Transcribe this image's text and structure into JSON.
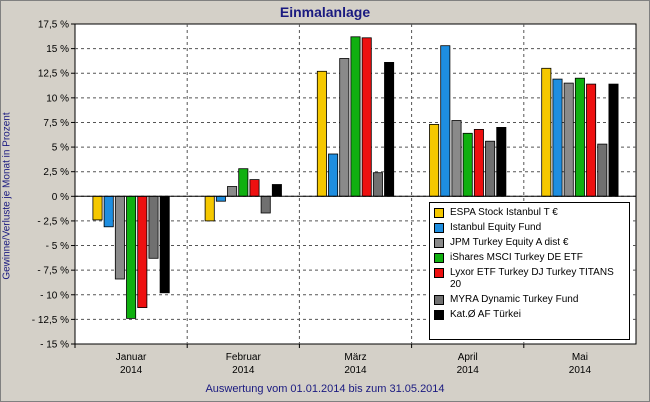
{
  "title": "Einmalanlage",
  "footer": "Auswertung vom 01.01.2014 bis zum 31.05.2014",
  "chart_data": {
    "type": "bar",
    "title": "Einmalanlage",
    "xlabel": "",
    "ylabel": "Gewinne/Verluste je Monat in Prozent",
    "ylim": [
      -15,
      17.5
    ],
    "grid": true,
    "legend_position": "bottom-right",
    "categories": [
      "Januar",
      "Februar",
      "März",
      "April",
      "Mai"
    ],
    "category_years": [
      "2014",
      "2014",
      "2014",
      "2014",
      "2014"
    ],
    "y_ticks": [
      "17,5 %",
      "15 %",
      "12,5 %",
      "10 %",
      "7,5 %",
      "5 %",
      "2,5 %",
      "0 %",
      "- 2,5 %",
      "- 5 %",
      "- 7,5 %",
      "- 10 %",
      "- 12,5 %",
      "- 15 %"
    ],
    "series": [
      {
        "name": "ESPA Stock Istanbul T €",
        "color": "#f5c800",
        "values": [
          -2.4,
          -2.5,
          12.7,
          7.3,
          13.0
        ]
      },
      {
        "name": "Istanbul Equity Fund",
        "color": "#1e8ee0",
        "values": [
          -3.1,
          -0.5,
          4.3,
          15.3,
          11.9
        ]
      },
      {
        "name": "JPM Turkey Equity A dist €",
        "color": "#8a8a8a",
        "values": [
          -8.4,
          1.0,
          14.0,
          7.7,
          11.5
        ]
      },
      {
        "name": "iShares MSCI Turkey DE ETF",
        "color": "#10b010",
        "values": [
          -12.4,
          2.8,
          16.2,
          6.4,
          12.0
        ]
      },
      {
        "name": "Lyxor ETF Turkey DJ Turkey TITANS 20",
        "color": "#ee1010",
        "values": [
          -11.3,
          1.7,
          16.1,
          6.8,
          11.4
        ]
      },
      {
        "name": "MYRA Dynamic Turkey Fund",
        "color": "#707070",
        "values": [
          -6.3,
          -1.7,
          2.4,
          5.6,
          5.3
        ]
      },
      {
        "name": "Kat.Ø AF Türkei",
        "color": "#000000",
        "values": [
          -9.8,
          1.2,
          13.6,
          7.0,
          11.4
        ]
      }
    ]
  }
}
